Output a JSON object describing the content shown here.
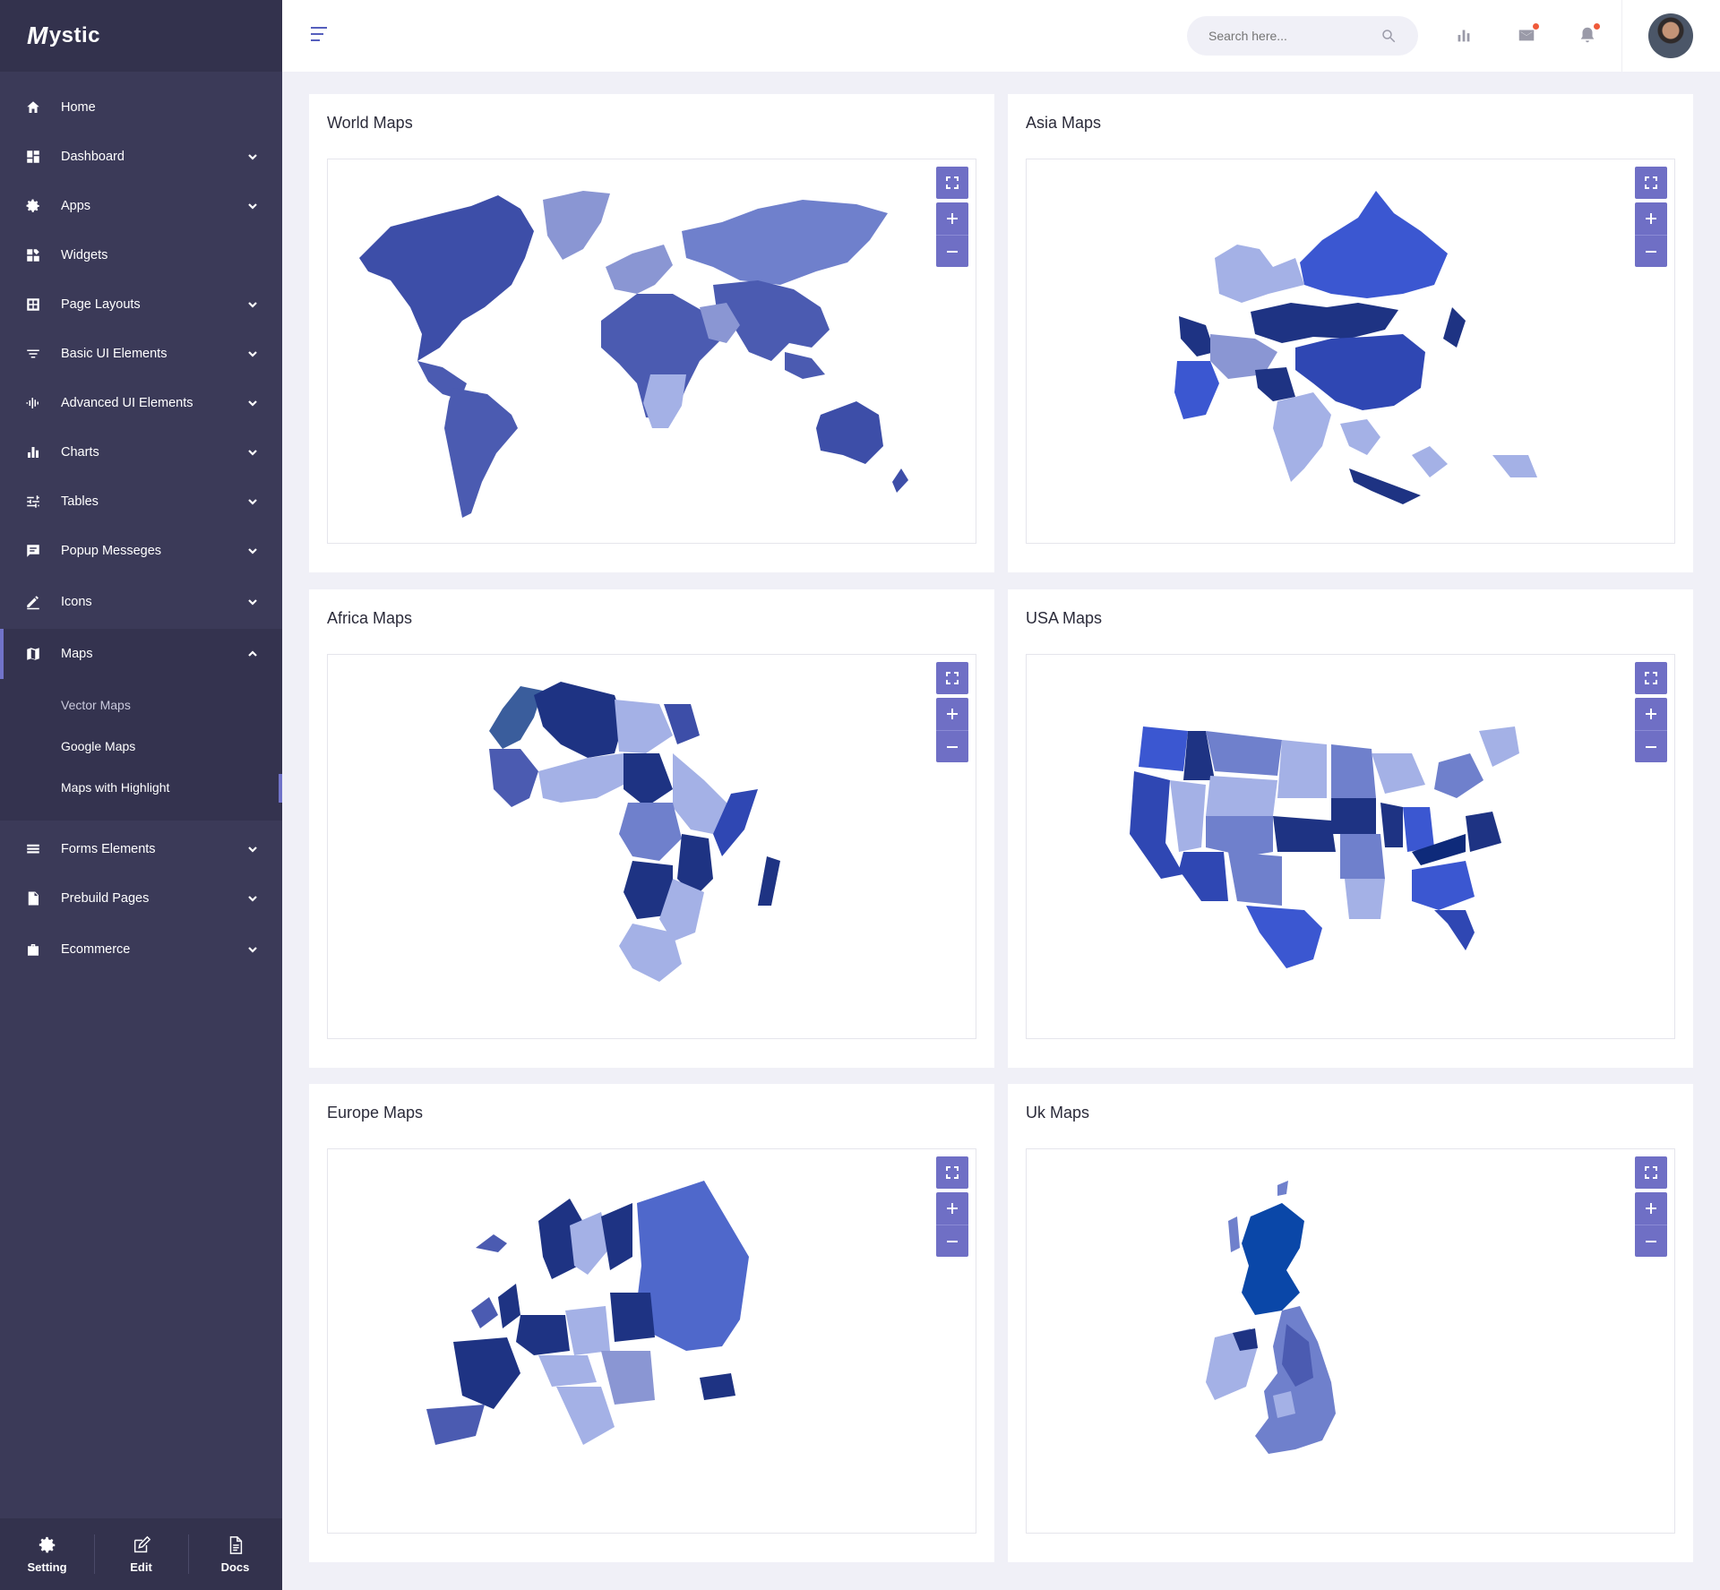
{
  "app": {
    "brand_initial": "M",
    "brand_rest": "ystic"
  },
  "sidebar": {
    "items": [
      {
        "label": "Home",
        "icon": "home-icon",
        "has_chevron": false
      },
      {
        "label": "Dashboard",
        "icon": "dashboard-icon",
        "has_chevron": true
      },
      {
        "label": "Apps",
        "icon": "gear-icon",
        "has_chevron": true
      },
      {
        "label": "Widgets",
        "icon": "widgets-icon",
        "has_chevron": false
      },
      {
        "label": "Page Layouts",
        "icon": "layout-icon",
        "has_chevron": true
      },
      {
        "label": "Basic UI Elements",
        "icon": "filter-icon",
        "has_chevron": true
      },
      {
        "label": "Advanced UI Elements",
        "icon": "waveform-icon",
        "has_chevron": true
      },
      {
        "label": "Charts",
        "icon": "bar-chart-icon",
        "has_chevron": true
      },
      {
        "label": "Tables",
        "icon": "sliders-icon",
        "has_chevron": true
      },
      {
        "label": "Popup Messeges",
        "icon": "chat-icon",
        "has_chevron": true
      },
      {
        "label": "Icons",
        "icon": "pencil-icon",
        "has_chevron": true
      },
      {
        "label": "Maps",
        "icon": "map-icon",
        "has_chevron": true,
        "expanded": true
      },
      {
        "label": "Forms Elements",
        "icon": "list-icon",
        "has_chevron": true
      },
      {
        "label": "Prebuild Pages",
        "icon": "file-icon",
        "has_chevron": true
      },
      {
        "label": "Ecommerce",
        "icon": "shop-icon",
        "has_chevron": true
      }
    ],
    "maps_submenu": [
      "Vector Maps",
      "Google Maps",
      "Maps with Highlight"
    ],
    "footer": {
      "setting": "Setting",
      "edit": "Edit",
      "docs": "Docs"
    }
  },
  "header": {
    "search_placeholder": "Search here...",
    "icons": [
      "bar-chart-icon",
      "mail-icon",
      "bell-icon"
    ]
  },
  "cards": [
    {
      "title": "World Maps"
    },
    {
      "title": "Asia Maps"
    },
    {
      "title": "Africa Maps"
    },
    {
      "title": "USA Maps"
    },
    {
      "title": "Europe Maps"
    },
    {
      "title": "Uk Maps"
    }
  ],
  "colors": {
    "sidebar_bg": "#3b3a58",
    "accent": "#6f6fc5",
    "map_dark": "#1e3383",
    "map_mid": "#4b5bbd",
    "map_light": "#a4b1e6",
    "notify_dot": "#ef5a3a"
  }
}
